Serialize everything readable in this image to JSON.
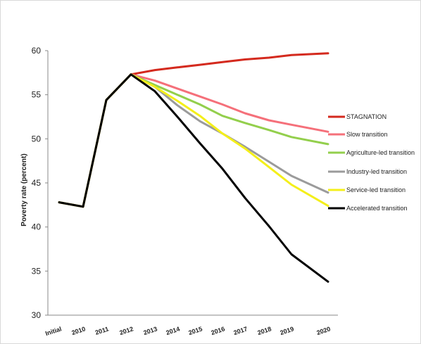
{
  "chart_data": {
    "type": "line",
    "title": "",
    "xlabel": "",
    "ylabel": "Poverty rate (percent)",
    "ylim": [
      30,
      60
    ],
    "yticks": [
      30,
      35,
      40,
      45,
      50,
      55,
      60
    ],
    "grid": false,
    "legend_position": "right",
    "categories": [
      "Initial",
      "2010",
      "2011",
      "2012",
      "2013",
      "2014",
      "2015",
      "2016",
      "2017",
      "2018",
      "2019",
      "2020"
    ],
    "series": [
      {
        "name": "STAGNATION",
        "color": "#d42a1e",
        "values": [
          42.8,
          42.3,
          54.4,
          57.3,
          57.8,
          58.1,
          58.4,
          58.7,
          59.0,
          59.2,
          59.5,
          59.7
        ]
      },
      {
        "name": "Slow transition",
        "color": "#f5707a",
        "values": [
          42.8,
          42.3,
          54.4,
          57.3,
          56.6,
          55.7,
          54.8,
          53.9,
          52.9,
          52.1,
          51.6,
          50.8
        ]
      },
      {
        "name": "Agriculture-led transition",
        "color": "#93cf4c",
        "values": [
          42.8,
          42.3,
          54.4,
          57.3,
          56.1,
          55.0,
          53.9,
          52.6,
          51.8,
          51.0,
          50.2,
          49.4
        ]
      },
      {
        "name": "Industry-led transition",
        "color": "#9b9b9b",
        "values": [
          42.8,
          42.3,
          54.4,
          57.3,
          55.9,
          53.8,
          52.0,
          50.6,
          49.1,
          47.4,
          45.8,
          43.9
        ]
      },
      {
        "name": "Service-led transition",
        "color": "#f4ef1a",
        "values": [
          42.8,
          42.3,
          54.4,
          57.3,
          55.9,
          54.3,
          52.6,
          50.6,
          48.9,
          46.8,
          44.8,
          42.4
        ]
      },
      {
        "name": "Accelerated transition",
        "color": "#000000",
        "values": [
          42.8,
          42.3,
          54.4,
          57.3,
          55.4,
          52.5,
          49.5,
          46.6,
          43.3,
          40.1,
          36.9,
          33.8
        ]
      }
    ]
  }
}
